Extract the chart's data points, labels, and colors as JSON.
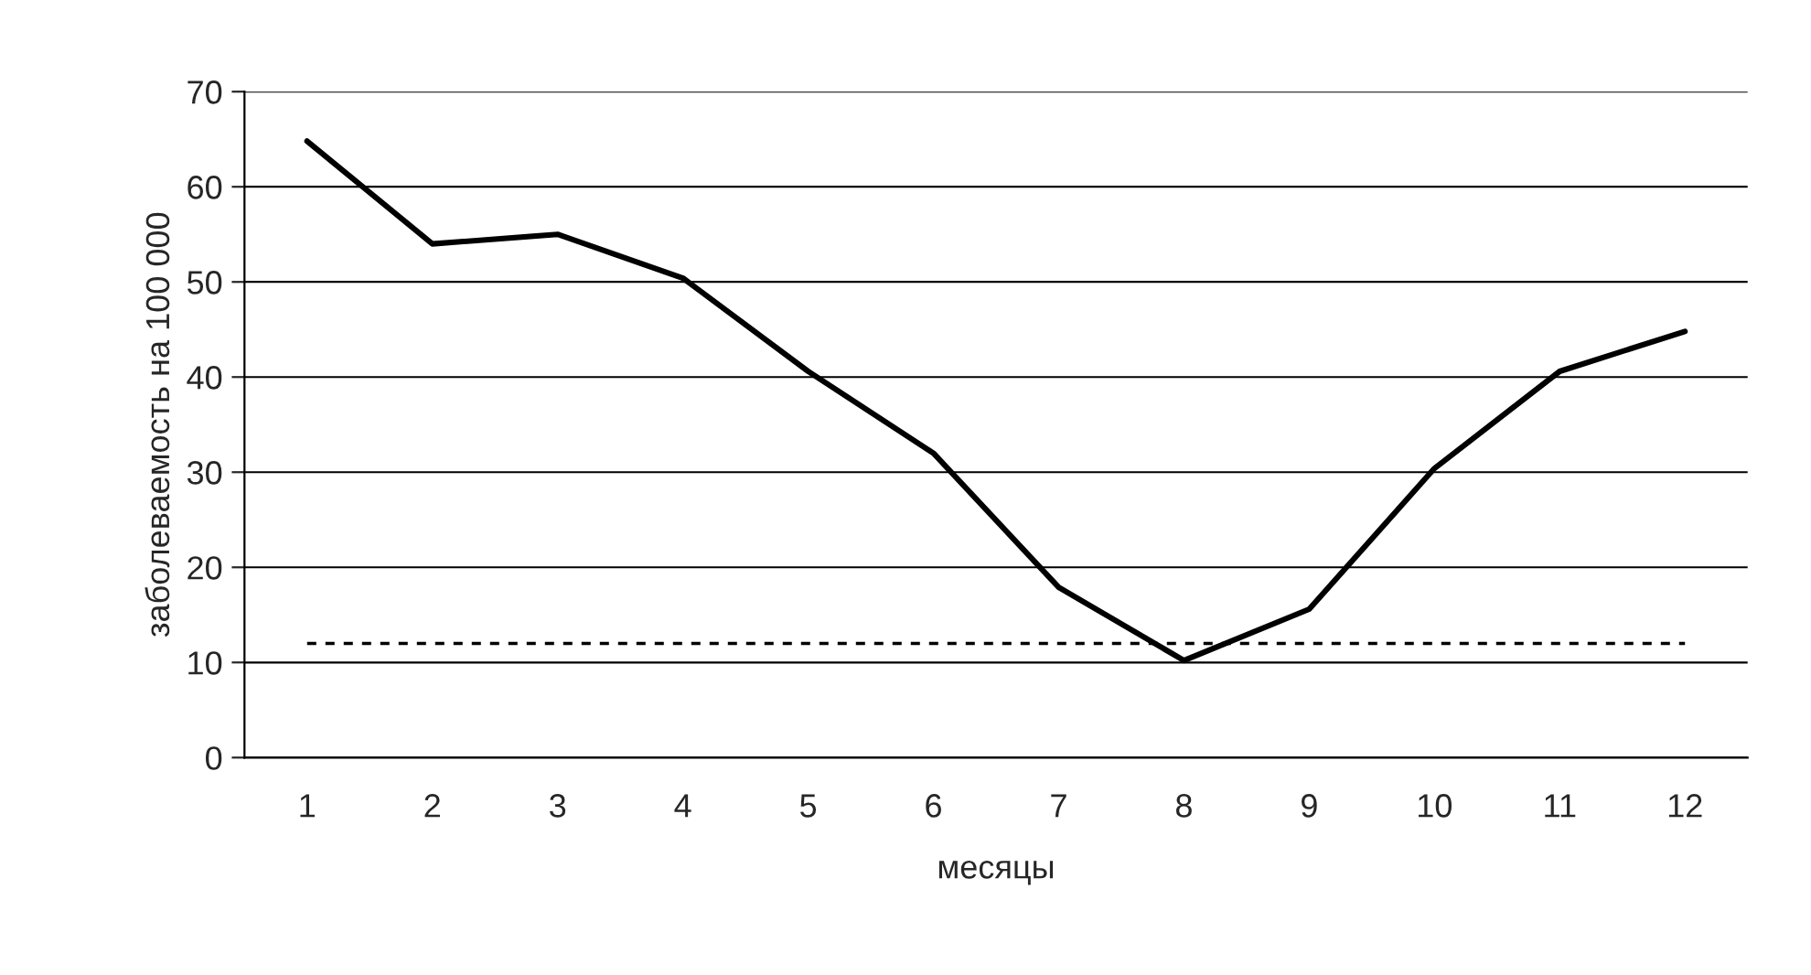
{
  "chart_data": {
    "type": "line",
    "xlabel": "месяцы",
    "ylabel": "заболеваемость на 100 000",
    "categories": [
      "1",
      "2",
      "3",
      "4",
      "5",
      "6",
      "7",
      "8",
      "9",
      "10",
      "11",
      "12"
    ],
    "series": [
      {
        "color": "#000000",
        "values": [
          64.8,
          54,
          55,
          50.4,
          40.6,
          32,
          17.9,
          10.2,
          15.6,
          30.4,
          40.6,
          44.8
        ]
      }
    ],
    "ylim": [
      0,
      70
    ],
    "yticks": [
      0,
      10,
      20,
      30,
      40,
      50,
      60,
      70
    ],
    "grid": "y",
    "legend": false,
    "marker": "none",
    "line_style": "solid",
    "ref_lines": [
      {
        "axis": "y",
        "value": 12,
        "color": "#000000",
        "line_style": "dashed"
      }
    ]
  }
}
